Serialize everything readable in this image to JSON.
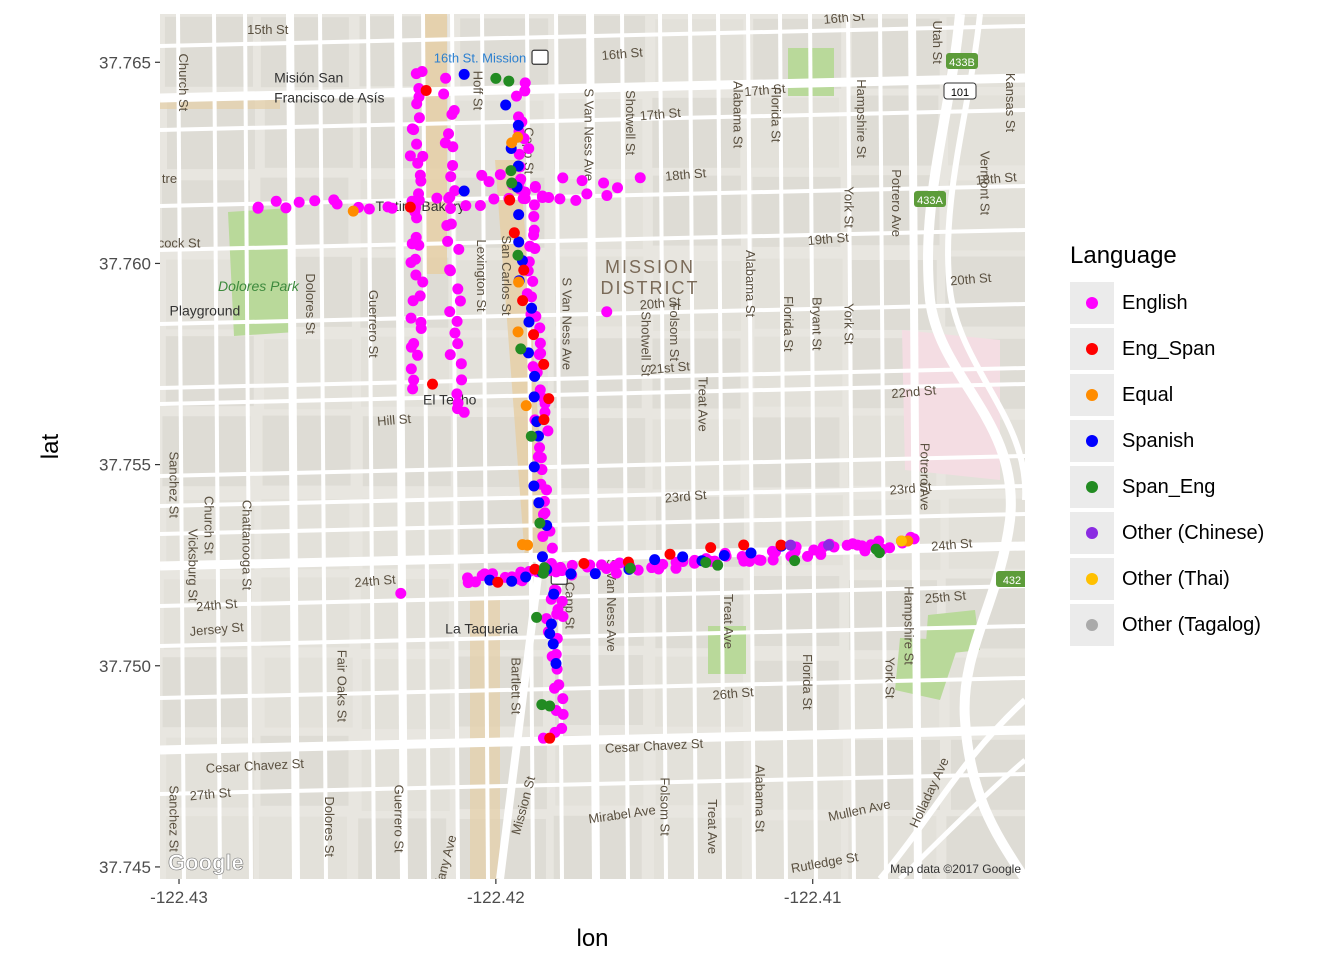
{
  "chart_data": {
    "type": "scatter",
    "xlabel": "lon",
    "ylabel": "lat",
    "xlim": [
      -122.4306,
      -122.4033
    ],
    "ylim": [
      37.7447,
      37.7662
    ],
    "x_ticks": [
      {
        "value": -122.43,
        "label": "-122.43"
      },
      {
        "value": -122.42,
        "label": "-122.42"
      },
      {
        "value": -122.41,
        "label": "-122.41"
      }
    ],
    "y_ticks": [
      {
        "value": 37.765,
        "label": "37.765"
      },
      {
        "value": 37.76,
        "label": "37.760"
      },
      {
        "value": 37.755,
        "label": "37.755"
      },
      {
        "value": 37.75,
        "label": "37.750"
      },
      {
        "value": 37.745,
        "label": "37.745"
      }
    ],
    "legend": {
      "title": "Language",
      "placement": "right",
      "entries": [
        {
          "label": "English",
          "color": "#ff00ff"
        },
        {
          "label": "Eng_Span",
          "color": "#ff0000"
        },
        {
          "label": "Equal",
          "color": "#ff8c00"
        },
        {
          "label": "Spanish",
          "color": "#0000ff"
        },
        {
          "label": "Span_Eng",
          "color": "#228b22"
        },
        {
          "label": "Other (Chinese)",
          "color": "#8a2be2"
        },
        {
          "label": "Other (Thai)",
          "color": "#ffc000"
        },
        {
          "label": "Other (Tagalog)",
          "color": "#aaaaaa"
        }
      ]
    },
    "segments": [
      {
        "language": "English",
        "lon": [
          -122.4225,
          -122.4225
        ],
        "lat": [
          37.7648,
          37.757
        ],
        "count": 36
      },
      {
        "language": "English",
        "lon": [
          -122.4215,
          -122.4212
        ],
        "lat": [
          37.7645,
          37.7563
        ],
        "count": 30
      },
      {
        "language": "English",
        "lon": [
          -122.4275,
          -122.4165
        ],
        "lat": [
          37.7614,
          37.7616
        ],
        "count": 26
      },
      {
        "language": "English",
        "lon": [
          -122.4192,
          -122.418
        ],
        "lat": [
          37.7645,
          37.7482
        ],
        "count": 70
      },
      {
        "language": "English",
        "lon": [
          -122.4205,
          -122.4185
        ],
        "lat": [
          37.7622,
          37.7618
        ],
        "count": 8
      },
      {
        "language": "English",
        "lon": [
          -122.4195,
          -122.4155
        ],
        "lat": [
          37.762,
          37.762
        ],
        "count": 6
      },
      {
        "language": "English",
        "lon": [
          -122.421,
          -122.4068
        ],
        "lat": [
          37.7521,
          37.7531
        ],
        "count": 72
      },
      {
        "language": "English",
        "lon": [
          -122.418,
          -122.418
        ],
        "lat": [
          37.752,
          37.7508
        ],
        "count": 5
      },
      {
        "language": "Spanish",
        "lon": [
          -122.4195,
          -122.4182
        ],
        "lat": [
          37.764,
          37.75
        ],
        "count": 26
      },
      {
        "language": "Spanish",
        "lon": [
          -122.42,
          -122.411
        ],
        "lat": [
          37.7521,
          37.753
        ],
        "count": 12
      },
      {
        "language": "Eng_Span",
        "lon": [
          -122.4195,
          -122.4183
        ],
        "lat": [
          37.7615,
          37.756
        ],
        "count": 8
      },
      {
        "language": "Eng_Span",
        "lon": [
          -122.42,
          -122.412
        ],
        "lat": [
          37.7521,
          37.753
        ],
        "count": 7
      },
      {
        "language": "Span_Eng",
        "lon": [
          -122.4195,
          -122.4185
        ],
        "lat": [
          37.7645,
          37.749
        ],
        "count": 8
      },
      {
        "language": "Span_Eng",
        "lon": [
          -122.4185,
          -122.408
        ],
        "lat": [
          37.7523,
          37.7529
        ],
        "count": 5
      },
      {
        "language": "Equal",
        "lon": [
          -122.4195,
          -122.419
        ],
        "lat": [
          37.763,
          37.753
        ],
        "count": 4
      }
    ],
    "points": [
      {
        "language": "English",
        "lon": -122.4275,
        "lat": 37.7614
      },
      {
        "language": "English",
        "lon": -122.4165,
        "lat": 37.7588
      },
      {
        "language": "English",
        "lon": -122.4166,
        "lat": 37.762
      },
      {
        "language": "English",
        "lon": -122.423,
        "lat": 37.7518
      },
      {
        "language": "English",
        "lon": -122.421,
        "lat": 37.7563
      },
      {
        "language": "English",
        "lon": -122.4072,
        "lat": 37.7531
      },
      {
        "language": "English",
        "lon": -122.4185,
        "lat": 37.7482
      },
      {
        "language": "Eng_Span",
        "lon": -122.4227,
        "lat": 37.7614
      },
      {
        "language": "Eng_Span",
        "lon": -122.4222,
        "lat": 37.7643
      },
      {
        "language": "Eng_Span",
        "lon": -122.4183,
        "lat": 37.7482
      },
      {
        "language": "Eng_Span",
        "lon": -122.411,
        "lat": 37.753
      },
      {
        "language": "Eng_Span",
        "lon": -122.422,
        "lat": 37.757
      },
      {
        "language": "Spanish",
        "lon": -122.421,
        "lat": 37.7647
      },
      {
        "language": "Spanish",
        "lon": -122.421,
        "lat": 37.7618
      },
      {
        "language": "Spanish",
        "lon": -122.4183,
        "lat": 37.7508
      },
      {
        "language": "Spanish",
        "lon": -122.4195,
        "lat": 37.7521
      },
      {
        "language": "Span_Eng",
        "lon": -122.42,
        "lat": 37.7646
      },
      {
        "language": "Span_Eng",
        "lon": -122.4195,
        "lat": 37.762
      },
      {
        "language": "Span_Eng",
        "lon": -122.4183,
        "lat": 37.749
      },
      {
        "language": "Span_Eng",
        "lon": -122.4185,
        "lat": 37.7523
      },
      {
        "language": "Span_Eng",
        "lon": -122.413,
        "lat": 37.7525
      },
      {
        "language": "Span_Eng",
        "lon": -122.408,
        "lat": 37.7529
      },
      {
        "language": "Equal",
        "lon": -122.4245,
        "lat": 37.7613
      },
      {
        "language": "Equal",
        "lon": -122.4195,
        "lat": 37.763
      },
      {
        "language": "Equal",
        "lon": -122.419,
        "lat": 37.753
      },
      {
        "language": "Equal",
        "lon": -122.4193,
        "lat": 37.7583
      },
      {
        "language": "Equal",
        "lon": -122.407,
        "lat": 37.7531
      },
      {
        "language": "Other (Chinese)",
        "lon": -122.4107,
        "lat": 37.753
      },
      {
        "language": "Other (Chinese)",
        "lon": -122.4095,
        "lat": 37.753
      },
      {
        "language": "Other (Thai)",
        "lon": -122.4072,
        "lat": 37.7531
      }
    ]
  },
  "map": {
    "district": [
      "MISSION",
      "DISTRICT"
    ],
    "streets": [
      {
        "text": "15th St",
        "lon": -122.4272,
        "lat": 37.7657,
        "rot": 0
      },
      {
        "text": "16th St",
        "lon": -122.416,
        "lat": 37.7651,
        "rot": -5
      },
      {
        "text": "16th St",
        "lon": -122.409,
        "lat": 37.766,
        "rot": -5
      },
      {
        "text": "17th St",
        "lon": -122.4148,
        "lat": 37.7636,
        "rot": -5
      },
      {
        "text": "17th St",
        "lon": -122.4115,
        "lat": 37.7642,
        "rot": -5
      },
      {
        "text": "18th St",
        "lon": -122.414,
        "lat": 37.7621,
        "rot": -5
      },
      {
        "text": "18th St",
        "lon": -122.4042,
        "lat": 37.762,
        "rot": -5
      },
      {
        "text": "19th St",
        "lon": -122.4095,
        "lat": 37.7605,
        "rot": -5
      },
      {
        "text": "20th St",
        "lon": -122.4148,
        "lat": 37.7589,
        "rot": -5
      },
      {
        "text": "20th St",
        "lon": -122.405,
        "lat": 37.7595,
        "rot": -5
      },
      {
        "text": "21st St",
        "lon": -122.4145,
        "lat": 37.7573,
        "rot": -5
      },
      {
        "text": "22nd St",
        "lon": -122.4068,
        "lat": 37.7567,
        "rot": -5
      },
      {
        "text": "23rd St",
        "lon": -122.414,
        "lat": 37.7541,
        "rot": -5
      },
      {
        "text": "23rd St",
        "lon": -122.4069,
        "lat": 37.7543,
        "rot": -5
      },
      {
        "text": "24th St",
        "lon": -122.4056,
        "lat": 37.7529,
        "rot": -5
      },
      {
        "text": "24th St",
        "lon": -122.4238,
        "lat": 37.752,
        "rot": -5
      },
      {
        "text": "24th St",
        "lon": -122.4288,
        "lat": 37.7514,
        "rot": -5
      },
      {
        "text": "25th St",
        "lon": -122.4058,
        "lat": 37.7516,
        "rot": -5
      },
      {
        "text": "26th St",
        "lon": -122.4125,
        "lat": 37.7492,
        "rot": -5
      },
      {
        "text": "27th St",
        "lon": -122.429,
        "lat": 37.7467,
        "rot": -5
      },
      {
        "text": "Cesar Chavez St",
        "lon": -122.415,
        "lat": 37.7479,
        "rot": -3
      },
      {
        "text": "Cesar Chavez St",
        "lon": -122.4276,
        "lat": 37.7474,
        "rot": -3
      },
      {
        "text": "Hill St",
        "lon": -122.4232,
        "lat": 37.756,
        "rot": -5
      },
      {
        "text": "Jersey St",
        "lon": -122.4288,
        "lat": 37.7508,
        "rot": -5
      },
      {
        "text": "Mirabel Ave",
        "lon": -122.416,
        "lat": 37.7462,
        "rot": -8
      },
      {
        "text": "Mullen Ave",
        "lon": -122.4085,
        "lat": 37.7463,
        "rot": -12
      },
      {
        "text": "Rutledge St",
        "lon": -122.4096,
        "lat": 37.745,
        "rot": -10
      },
      {
        "text": "Hoff St",
        "lon": -122.4207,
        "lat": 37.7643,
        "rot": 90
      },
      {
        "text": "Capp St",
        "lon": -122.4191,
        "lat": 37.7628,
        "rot": 90
      },
      {
        "text": "S Van Ness Ave",
        "lon": -122.4172,
        "lat": 37.7632,
        "rot": 90
      },
      {
        "text": "S Van Ness Ave",
        "lon": -122.4179,
        "lat": 37.7585,
        "rot": 90
      },
      {
        "text": "S Van Ness Ave",
        "lon": -122.4165,
        "lat": 37.7515,
        "rot": 90
      },
      {
        "text": "Shotwell St",
        "lon": -122.4159,
        "lat": 37.7635,
        "rot": 90
      },
      {
        "text": "Shotwell St",
        "lon": -122.4154,
        "lat": 37.758,
        "rot": 90
      },
      {
        "text": "Folsom St",
        "lon": -122.4145,
        "lat": 37.7583,
        "rot": 90
      },
      {
        "text": "Folsom St",
        "lon": -122.4148,
        "lat": 37.7465,
        "rot": 90
      },
      {
        "text": "Treat Ave",
        "lon": -122.4136,
        "lat": 37.7565,
        "rot": 90
      },
      {
        "text": "Treat Ave",
        "lon": -122.4128,
        "lat": 37.7511,
        "rot": 90
      },
      {
        "text": "Treat Ave",
        "lon": -122.4133,
        "lat": 37.746,
        "rot": 90
      },
      {
        "text": "Alabama St",
        "lon": -122.4125,
        "lat": 37.7637,
        "rot": 90
      },
      {
        "text": "Alabama St",
        "lon": -122.4121,
        "lat": 37.7595,
        "rot": 90
      },
      {
        "text": "Alabama St",
        "lon": -122.4118,
        "lat": 37.7467,
        "rot": 90
      },
      {
        "text": "Florida St",
        "lon": -122.4113,
        "lat": 37.7637,
        "rot": 90
      },
      {
        "text": "Florida St",
        "lon": -122.4109,
        "lat": 37.7585,
        "rot": 90
      },
      {
        "text": "Florida St",
        "lon": -122.4103,
        "lat": 37.7496,
        "rot": 90
      },
      {
        "text": "Bryant St",
        "lon": -122.41,
        "lat": 37.7585,
        "rot": 90
      },
      {
        "text": "York St",
        "lon": -122.409,
        "lat": 37.7614,
        "rot": 90
      },
      {
        "text": "York St",
        "lon": -122.409,
        "lat": 37.7585,
        "rot": 90
      },
      {
        "text": "York St",
        "lon": -122.4077,
        "lat": 37.7497,
        "rot": 90
      },
      {
        "text": "Hampshire St",
        "lon": -122.4086,
        "lat": 37.7636,
        "rot": 90
      },
      {
        "text": "Hampshire St",
        "lon": -122.4071,
        "lat": 37.751,
        "rot": 90
      },
      {
        "text": "Potrero Ave",
        "lon": -122.4075,
        "lat": 37.7615,
        "rot": 90
      },
      {
        "text": "Potrero Ave",
        "lon": -122.4066,
        "lat": 37.7547,
        "rot": 90
      },
      {
        "text": "Utah St",
        "lon": -122.4062,
        "lat": 37.7655,
        "rot": 90
      },
      {
        "text": "Vermont St",
        "lon": -122.4047,
        "lat": 37.762,
        "rot": 90
      },
      {
        "text": "Kansas St",
        "lon": -122.4039,
        "lat": 37.764,
        "rot": 90
      },
      {
        "text": "Holladay Ave",
        "lon": -122.4062,
        "lat": 37.7468,
        "rot": -65
      },
      {
        "text": "Dolores St",
        "lon": -122.426,
        "lat": 37.759,
        "rot": 90
      },
      {
        "text": "Dolores St",
        "lon": -122.4254,
        "lat": 37.746,
        "rot": 90
      },
      {
        "text": "Guerrero St",
        "lon": -122.424,
        "lat": 37.7585,
        "rot": 90
      },
      {
        "text": "Guerrero St",
        "lon": -122.4232,
        "lat": 37.7462,
        "rot": 90
      },
      {
        "text": "Lexington St",
        "lon": -122.4206,
        "lat": 37.7597,
        "rot": 90
      },
      {
        "text": "San Carlos St",
        "lon": -122.4198,
        "lat": 37.7597,
        "rot": 90
      },
      {
        "text": "Bartlett St",
        "lon": -122.4195,
        "lat": 37.7495,
        "rot": 90
      },
      {
        "text": "Capp St",
        "lon": -122.4178,
        "lat": 37.7515,
        "rot": 90
      },
      {
        "text": "Mission St",
        "lon": -122.419,
        "lat": 37.7465,
        "rot": -75
      },
      {
        "text": "Fair Oaks St",
        "lon": -122.425,
        "lat": 37.7495,
        "rot": 90
      },
      {
        "text": "Chattanooga St",
        "lon": -122.428,
        "lat": 37.753,
        "rot": 90
      },
      {
        "text": "Church St",
        "lon": -122.4292,
        "lat": 37.7535,
        "rot": 90
      },
      {
        "text": "Church St",
        "lon": -122.43,
        "lat": 37.7645,
        "rot": 90
      },
      {
        "text": "Vicksburg St",
        "lon": -122.4297,
        "lat": 37.7525,
        "rot": 90
      },
      {
        "text": "Sanchez St",
        "lon": -122.4303,
        "lat": 37.7545,
        "rot": 90
      },
      {
        "text": "Sanchez St",
        "lon": -122.4303,
        "lat": 37.7462,
        "rot": 90
      },
      {
        "text": "Tiffany Ave",
        "lon": -122.4215,
        "lat": 37.745,
        "rot": -75
      },
      {
        "text": "cock St",
        "lon": -122.43,
        "lat": 37.7604,
        "rot": 0
      },
      {
        "text": "tre",
        "lon": -122.4303,
        "lat": 37.762,
        "rot": 0
      }
    ],
    "pois": [
      {
        "text": "Misión San",
        "lon": -122.427,
        "lat": 37.7645
      },
      {
        "text": "Francisco de Asís",
        "lon": -122.427,
        "lat": 37.764
      },
      {
        "text": "Tartine Bakery",
        "lon": -122.4238,
        "lat": 37.7613
      },
      {
        "text": "El Techo",
        "lon": -122.4223,
        "lat": 37.7565
      },
      {
        "text": "La Taqueria",
        "lon": -122.4216,
        "lat": 37.7508
      },
      {
        "text": "Playground",
        "lon": -122.4303,
        "lat": 37.7587
      }
    ],
    "park_label": "Dolores Park",
    "station_label": "16th St. Mission",
    "highway_labels": [
      "433B",
      "433A",
      "101",
      "432"
    ],
    "attribution": "Map data ©2017 Google",
    "google_logo": "Google"
  }
}
